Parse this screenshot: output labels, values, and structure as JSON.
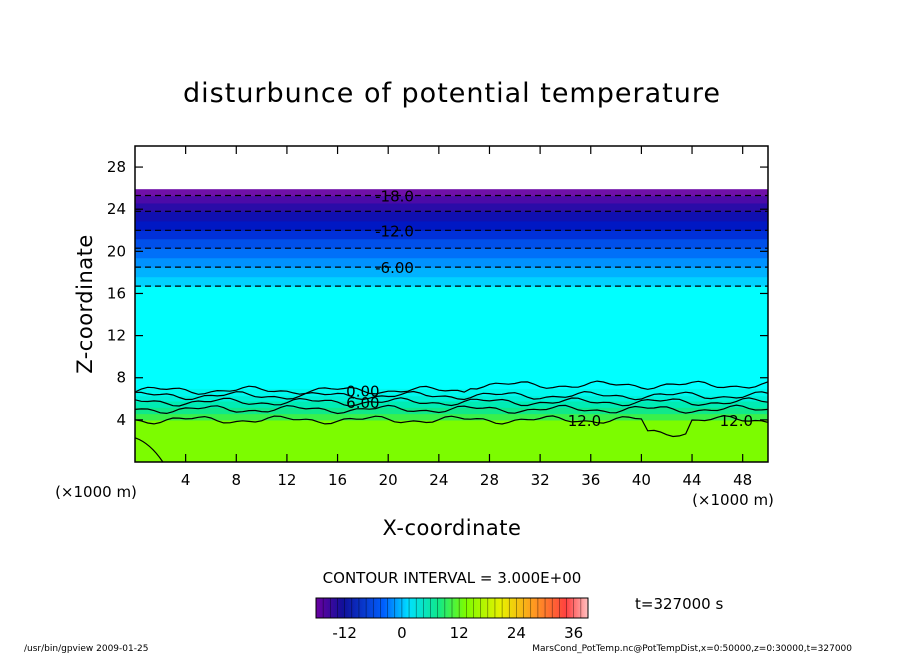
{
  "chart_data": {
    "type": "heatmap",
    "title": "disturbunce of potential temperature",
    "xlabel": "X-coordinate",
    "ylabel": "Z-coordinate",
    "x_unit": "(×1000 m)",
    "y_unit": "(×1000 m)",
    "xlim": [
      0,
      50
    ],
    "ylim": [
      0,
      30
    ],
    "x_ticks": [
      4,
      8,
      12,
      16,
      20,
      24,
      28,
      32,
      36,
      40,
      44,
      48
    ],
    "y_ticks": [
      4,
      8,
      12,
      16,
      20,
      24,
      28
    ],
    "contour_interval_label": "CONTOUR INTERVAL = 3.000E+00",
    "time_label": "t=327000 s",
    "colorbar": {
      "range": [
        -18,
        39
      ],
      "ticks": [
        -12,
        0,
        12,
        24,
        36
      ]
    },
    "data_top_z": 25.9,
    "bands": [
      {
        "z0": 0,
        "z1": 4.0,
        "value": 10.5,
        "color": "#7cfc00"
      },
      {
        "z0": 4.0,
        "z1": 4.6,
        "value": 9.0,
        "color": "#3af04a"
      },
      {
        "z0": 4.6,
        "z1": 5.2,
        "value": 7.5,
        "color": "#10e88a"
      },
      {
        "z0": 5.2,
        "z1": 5.8,
        "value": 6.0,
        "color": "#00ecb4"
      },
      {
        "z0": 5.8,
        "z1": 6.3,
        "value": 4.5,
        "color": "#00f0d8"
      },
      {
        "z0": 6.3,
        "z1": 7.0,
        "value": 3.0,
        "color": "#00f8ee"
      },
      {
        "z0": 7.0,
        "z1": 16.7,
        "value": 0.0,
        "color": "#00ffff"
      },
      {
        "z0": 16.7,
        "z1": 17.6,
        "value": -4.5,
        "color": "#00d2ff"
      },
      {
        "z0": 17.6,
        "z1": 18.5,
        "value": -6.0,
        "color": "#00b2ff"
      },
      {
        "z0": 18.5,
        "z1": 19.4,
        "value": -7.5,
        "color": "#0092ff"
      },
      {
        "z0": 19.4,
        "z1": 20.3,
        "value": -9.0,
        "color": "#0070f8"
      },
      {
        "z0": 20.3,
        "z1": 21.2,
        "value": -10.5,
        "color": "#0050ea"
      },
      {
        "z0": 21.2,
        "z1": 22.0,
        "value": -12.0,
        "color": "#0030d8"
      },
      {
        "z0": 22.0,
        "z1": 22.9,
        "value": -13.5,
        "color": "#0018c4"
      },
      {
        "z0": 22.9,
        "z1": 23.8,
        "value": -15.0,
        "color": "#1010b0"
      },
      {
        "z0": 23.8,
        "z1": 24.6,
        "value": -16.5,
        "color": "#2a0ca8"
      },
      {
        "z0": 24.6,
        "z1": 25.3,
        "value": -18.0,
        "color": "#4c0aa8"
      },
      {
        "z0": 25.3,
        "z1": 25.9,
        "value": -19.5,
        "color": "#7010a8"
      }
    ],
    "contours": [
      {
        "value": -18,
        "z": 25.3,
        "style": "dashed",
        "label": "-18.0",
        "label_x": 20.5
      },
      {
        "value": -15,
        "z": 23.8,
        "style": "dashed"
      },
      {
        "value": -12,
        "z": 22.0,
        "style": "dashed",
        "label": "-12.0",
        "label_x": 20.5
      },
      {
        "value": -9,
        "z": 20.3,
        "style": "dashed"
      },
      {
        "value": -6,
        "z": 18.5,
        "style": "dashed",
        "label": "-6.00",
        "label_x": 20.5
      },
      {
        "value": -3,
        "z": 16.7,
        "style": "dashed"
      },
      {
        "value": 0,
        "z": 6.8,
        "style": "solid",
        "label": "0.00",
        "label_x": 18.0
      },
      {
        "value": 3,
        "z": 6.3,
        "style": "solid"
      },
      {
        "value": 6,
        "z": 5.7,
        "style": "solid",
        "label": "6.00",
        "label_x": 18.0
      },
      {
        "value": 9,
        "z": 5.0,
        "style": "solid"
      },
      {
        "value": 12,
        "z": 4.0,
        "style": "solid",
        "label": "12.0",
        "label_x": 35.5
      }
    ],
    "extra_contour_labels": [
      {
        "text": "12.0",
        "x": 47.5,
        "z": 4.0
      }
    ]
  },
  "footer": {
    "left": "/usr/bin/gpview   2009-01-25",
    "right": "MarsCond_PotTemp.nc@PotTempDist,x=0:50000,z=0:30000,t=327000"
  },
  "colors": {
    "frame": "#000000",
    "background": "#ffffff"
  }
}
